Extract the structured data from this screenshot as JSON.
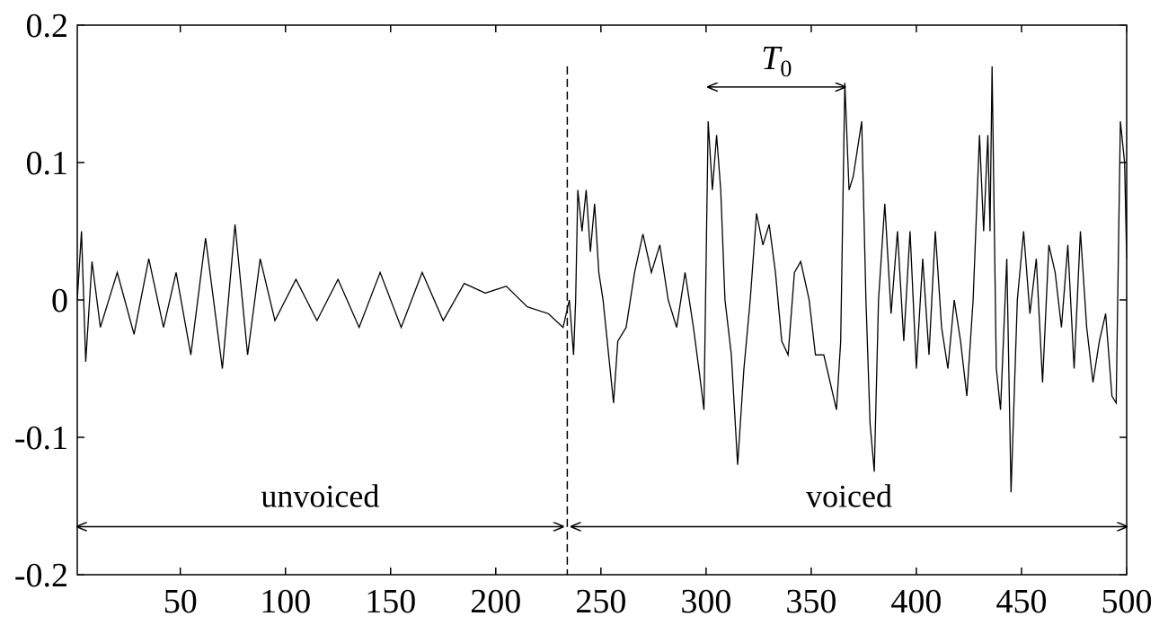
{
  "chart_data": {
    "type": "line",
    "title": "",
    "xlabel": "",
    "ylabel": "",
    "xlim": [
      1,
      500
    ],
    "ylim": [
      -0.2,
      0.2
    ],
    "grid": false,
    "legend": "none",
    "x_ticks": [
      50,
      100,
      150,
      200,
      250,
      300,
      350,
      400,
      450,
      500
    ],
    "y_ticks": [
      -0.2,
      -0.1,
      0,
      0.1,
      0.2
    ],
    "x_tick_labels": [
      "50",
      "100",
      "150",
      "200",
      "250",
      "300",
      "350",
      "400",
      "450",
      "500"
    ],
    "y_tick_labels": [
      "-0.2",
      "-0.1",
      "0",
      "0.1",
      "0.2"
    ],
    "series": [
      {
        "color": "#000000",
        "envelope_points": [
          [
            1,
            0.0
          ],
          [
            3,
            0.05
          ],
          [
            5,
            -0.045
          ],
          [
            8,
            0.028
          ],
          [
            12,
            -0.02
          ],
          [
            20,
            0.02
          ],
          [
            28,
            -0.025
          ],
          [
            35,
            0.03
          ],
          [
            42,
            -0.02
          ],
          [
            48,
            0.02
          ],
          [
            55,
            -0.04
          ],
          [
            62,
            0.045
          ],
          [
            70,
            -0.05
          ],
          [
            76,
            0.055
          ],
          [
            82,
            -0.04
          ],
          [
            88,
            0.03
          ],
          [
            95,
            -0.015
          ],
          [
            105,
            0.015
          ],
          [
            115,
            -0.015
          ],
          [
            125,
            0.015
          ],
          [
            135,
            -0.02
          ],
          [
            145,
            0.02
          ],
          [
            155,
            -0.02
          ],
          [
            165,
            0.02
          ],
          [
            175,
            -0.015
          ],
          [
            185,
            0.012
          ],
          [
            195,
            0.005
          ],
          [
            205,
            0.01
          ],
          [
            215,
            -0.005
          ],
          [
            225,
            -0.01
          ],
          [
            232,
            -0.02
          ],
          [
            235,
            0.0
          ],
          [
            237,
            -0.04
          ],
          [
            238,
            0.0
          ],
          [
            239,
            0.08
          ],
          [
            241,
            0.05
          ],
          [
            243,
            0.08
          ],
          [
            245,
            0.035
          ],
          [
            247,
            0.07
          ],
          [
            249,
            0.02
          ],
          [
            251,
            0.0
          ],
          [
            254,
            -0.045
          ],
          [
            256,
            -0.075
          ],
          [
            258,
            -0.03
          ],
          [
            262,
            -0.02
          ],
          [
            266,
            0.02
          ],
          [
            270,
            0.048
          ],
          [
            274,
            0.02
          ],
          [
            278,
            0.04
          ],
          [
            282,
            0.0
          ],
          [
            286,
            -0.02
          ],
          [
            290,
            0.02
          ],
          [
            294,
            -0.02
          ],
          [
            297,
            -0.055
          ],
          [
            299,
            -0.08
          ],
          [
            301,
            0.13
          ],
          [
            303,
            0.08
          ],
          [
            305,
            0.12
          ],
          [
            307,
            0.08
          ],
          [
            309,
            0.0
          ],
          [
            312,
            -0.04
          ],
          [
            315,
            -0.12
          ],
          [
            318,
            -0.05
          ],
          [
            321,
            0.0
          ],
          [
            324,
            0.063
          ],
          [
            327,
            0.04
          ],
          [
            330,
            0.055
          ],
          [
            333,
            0.02
          ],
          [
            336,
            -0.03
          ],
          [
            339,
            -0.04
          ],
          [
            342,
            0.02
          ],
          [
            345,
            0.028
          ],
          [
            349,
            0.0
          ],
          [
            352,
            -0.04
          ],
          [
            356,
            -0.04
          ],
          [
            359,
            -0.06
          ],
          [
            362,
            -0.08
          ],
          [
            364,
            -0.03
          ],
          [
            366,
            0.158
          ],
          [
            368,
            0.08
          ],
          [
            370,
            0.09
          ],
          [
            372,
            0.11
          ],
          [
            374,
            0.13
          ],
          [
            376,
            0.0
          ],
          [
            378,
            -0.09
          ],
          [
            380,
            -0.125
          ],
          [
            382,
            0.0
          ],
          [
            385,
            0.07
          ],
          [
            388,
            -0.01
          ],
          [
            391,
            0.05
          ],
          [
            394,
            -0.03
          ],
          [
            397,
            0.05
          ],
          [
            400,
            -0.05
          ],
          [
            403,
            0.03
          ],
          [
            406,
            -0.04
          ],
          [
            409,
            0.05
          ],
          [
            412,
            -0.02
          ],
          [
            415,
            -0.05
          ],
          [
            418,
            0.0
          ],
          [
            421,
            -0.03
          ],
          [
            424,
            -0.07
          ],
          [
            427,
            0.0
          ],
          [
            430,
            0.12
          ],
          [
            432,
            0.05
          ],
          [
            434,
            0.12
          ],
          [
            435,
            0.05
          ],
          [
            436,
            0.17
          ],
          [
            438,
            -0.05
          ],
          [
            440,
            -0.08
          ],
          [
            443,
            0.03
          ],
          [
            445,
            -0.14
          ],
          [
            448,
            0.0
          ],
          [
            451,
            0.05
          ],
          [
            454,
            -0.01
          ],
          [
            457,
            0.03
          ],
          [
            460,
            -0.06
          ],
          [
            463,
            0.04
          ],
          [
            466,
            0.02
          ],
          [
            469,
            -0.02
          ],
          [
            472,
            0.04
          ],
          [
            475,
            -0.05
          ],
          [
            478,
            0.05
          ],
          [
            481,
            -0.02
          ],
          [
            484,
            -0.06
          ],
          [
            487,
            -0.03
          ],
          [
            490,
            -0.01
          ],
          [
            493,
            -0.07
          ],
          [
            495,
            -0.075
          ],
          [
            497,
            0.13
          ],
          [
            499,
            0.1
          ],
          [
            500,
            0.03
          ]
        ]
      }
    ],
    "annotations": {
      "boundary_x": 234,
      "unvoiced": {
        "label": "unvoiced",
        "x_from": 1,
        "x_to": 232
      },
      "voiced": {
        "label": "voiced",
        "x_from": 236,
        "x_to": 500
      },
      "arrow_y": -0.165,
      "t0": {
        "label": "T",
        "subscript": "0",
        "x_from": 301,
        "x_to": 366,
        "y": 0.155
      }
    }
  }
}
